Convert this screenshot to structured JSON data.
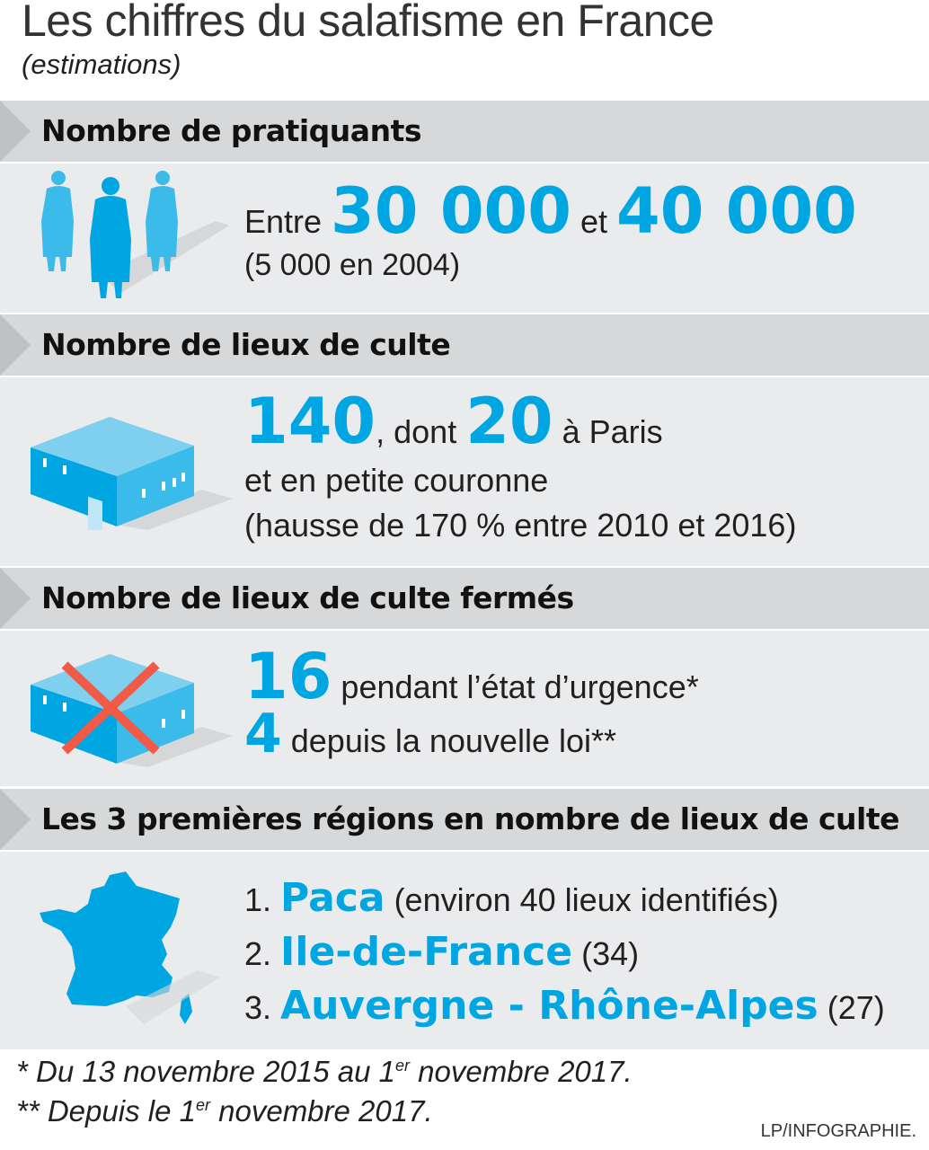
{
  "title": "Les chiffres du salafisme en France",
  "subtitle": "(estimations)",
  "sections": [
    {
      "heading": "Nombre de pratiquants",
      "icon": "people-icon",
      "pre": "Entre ",
      "v1": "30 000",
      "mid": " et ",
      "v2": "40 000",
      "line2": "(5 000 en 2004)"
    },
    {
      "heading": "Nombre de lieux de culte",
      "icon": "building-icon",
      "v1": "140",
      "mid": ", dont ",
      "v2": "20",
      "post": " à Paris",
      "line2": "et en petite couronne",
      "line3": "(hausse de 170 % entre 2010 et 2016)"
    },
    {
      "heading": "Nombre de lieux de culte fermés",
      "icon": "closed-building-icon",
      "v1": "16",
      "t1": " pendant l’état d’urgence*",
      "v2": "4",
      "t2": " depuis la nouvelle loi**"
    },
    {
      "heading": "Les 3 premières régions en nombre de lieux de culte",
      "icon": "france-map-icon",
      "items": [
        {
          "n": "1. ",
          "name": "Paca",
          "detail": " (environ 40 lieux identifiés)"
        },
        {
          "n": "2. ",
          "name": "Ile-de-France",
          "detail": " (34)"
        },
        {
          "n": "3. ",
          "name": "Auvergne - Rhône-Alpes",
          "detail": " (27)"
        }
      ]
    }
  ],
  "footnotes": {
    "f1a": "* Du 13 novembre 2015 au 1",
    "f1sup": "er",
    "f1b": " novembre 2017.",
    "f2a": "** Depuis le 1",
    "f2sup": "er",
    "f2b": " novembre 2017."
  },
  "credit": "LP/INFOGRAPHIE.",
  "colors": {
    "accent": "#00a6e2",
    "header": "#d7d8d9",
    "body": "#e9ebec",
    "cross": "#f05a47"
  }
}
